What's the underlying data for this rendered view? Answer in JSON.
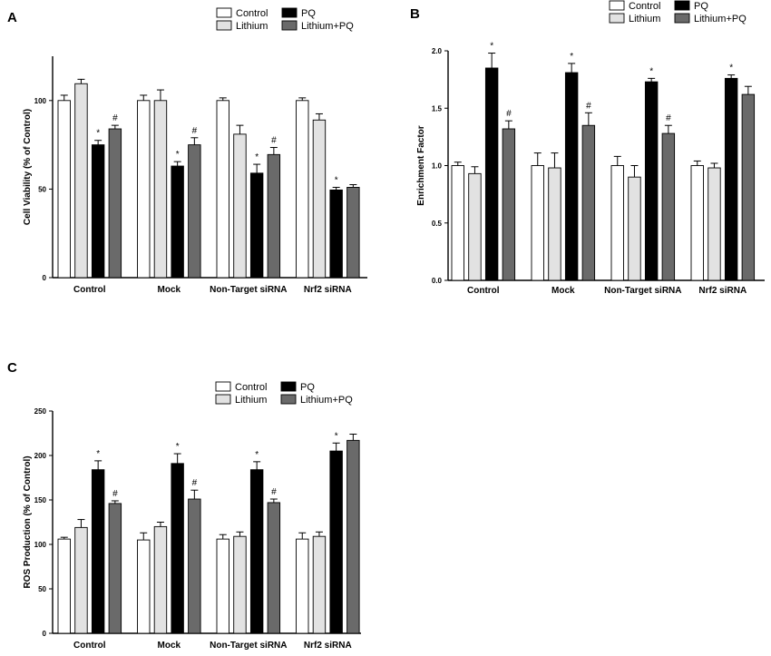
{
  "colors": {
    "Control": "#ffffff",
    "Lithium": "#e2e2e2",
    "PQ": "#000000",
    "Lithium+PQ": "#6a6a6a",
    "stroke": "#000000"
  },
  "chart_data": [
    {
      "panel": "A",
      "type": "bar",
      "title": "",
      "xlabel": "",
      "ylabel": "Cell Viability (% of Control)",
      "ylim": [
        0,
        125
      ],
      "yticks": [
        0,
        50,
        100
      ],
      "ytick_labels": [
        "0",
        "50",
        "100"
      ],
      "categories": [
        "Control",
        "Mock",
        "Non-Target siRNA",
        "Nrf2 siRNA"
      ],
      "legend": [
        "Control",
        "PQ",
        "Lithium",
        "Lithium+PQ"
      ],
      "legend_position": "top-right",
      "series": [
        {
          "name": "Control",
          "values": [
            100,
            100,
            100,
            100
          ],
          "errors": [
            3,
            3,
            1.5,
            1.5
          ],
          "marks": [
            "",
            "",
            "",
            ""
          ]
        },
        {
          "name": "Lithium",
          "values": [
            109.5,
            100,
            81,
            89
          ],
          "errors": [
            2.5,
            6,
            5,
            3.5
          ],
          "marks": [
            "",
            "",
            "",
            ""
          ]
        },
        {
          "name": "PQ",
          "values": [
            75,
            63,
            59,
            49.5
          ],
          "errors": [
            2.5,
            2.5,
            5,
            1.5
          ],
          "marks": [
            "*",
            "*",
            "*",
            "*"
          ]
        },
        {
          "name": "Lithium+PQ",
          "values": [
            84,
            75,
            69.5,
            51
          ],
          "errors": [
            2,
            4,
            4,
            1.5
          ],
          "marks": [
            "#",
            "#",
            "#",
            ""
          ]
        }
      ]
    },
    {
      "panel": "B",
      "type": "bar",
      "title": "",
      "xlabel": "",
      "ylabel": "Enrichment Factor",
      "ylim": [
        0,
        2.0
      ],
      "yticks": [
        0,
        0.5,
        1.0,
        1.5,
        2.0
      ],
      "ytick_labels": [
        "0.0",
        "0.5",
        "1.0",
        "1.5",
        "2.0"
      ],
      "categories": [
        "Control",
        "Mock",
        "Non-Target siRNA",
        "Nrf2 siRNA"
      ],
      "legend": [
        "Control",
        "PQ",
        "Lithium",
        "Lithium+PQ"
      ],
      "legend_position": "top-right",
      "series": [
        {
          "name": "Control",
          "values": [
            1.0,
            1.0,
            1.0,
            1.0
          ],
          "errors": [
            0.03,
            0.11,
            0.08,
            0.04
          ],
          "marks": [
            "",
            "",
            "",
            ""
          ]
        },
        {
          "name": "Lithium",
          "values": [
            0.93,
            0.98,
            0.9,
            0.98
          ],
          "errors": [
            0.06,
            0.13,
            0.1,
            0.04
          ],
          "marks": [
            "",
            "",
            "",
            ""
          ]
        },
        {
          "name": "PQ",
          "values": [
            1.85,
            1.81,
            1.73,
            1.76
          ],
          "errors": [
            0.13,
            0.08,
            0.03,
            0.03
          ],
          "marks": [
            "*",
            "*",
            "*",
            "*"
          ]
        },
        {
          "name": "Lithium+PQ",
          "values": [
            1.32,
            1.35,
            1.28,
            1.62
          ],
          "errors": [
            0.07,
            0.11,
            0.07,
            0.07
          ],
          "marks": [
            "#",
            "#",
            "#",
            ""
          ]
        }
      ]
    },
    {
      "panel": "C",
      "type": "bar",
      "title": "",
      "xlabel": "",
      "ylabel": "ROS Production (% of Control)",
      "ylim": [
        0,
        250
      ],
      "yticks": [
        0,
        50,
        100,
        150,
        200,
        250
      ],
      "ytick_labels": [
        "0",
        "50",
        "100",
        "150",
        "200",
        "250"
      ],
      "categories": [
        "Control",
        "Mock",
        "Non-Target  siRNA",
        "Nrf2 siRNA"
      ],
      "legend": [
        "Control",
        "PQ",
        "Lithium",
        "Lithium+PQ"
      ],
      "legend_position": "top-right",
      "series": [
        {
          "name": "Control",
          "values": [
            106,
            105,
            106,
            106
          ],
          "errors": [
            2,
            8,
            5,
            7
          ],
          "marks": [
            "",
            "",
            "",
            ""
          ]
        },
        {
          "name": "Lithium",
          "values": [
            119,
            120,
            109,
            109
          ],
          "errors": [
            9,
            5,
            5,
            5
          ],
          "marks": [
            "",
            "",
            "",
            ""
          ]
        },
        {
          "name": "PQ",
          "values": [
            184,
            191,
            184,
            205
          ],
          "errors": [
            10,
            11,
            9,
            9
          ],
          "marks": [
            "*",
            "*",
            "*",
            "*"
          ]
        },
        {
          "name": "Lithium+PQ",
          "values": [
            146,
            151,
            147,
            217
          ],
          "errors": [
            3,
            10,
            4,
            7
          ],
          "marks": [
            "#",
            "#",
            "#",
            ""
          ]
        }
      ]
    }
  ]
}
